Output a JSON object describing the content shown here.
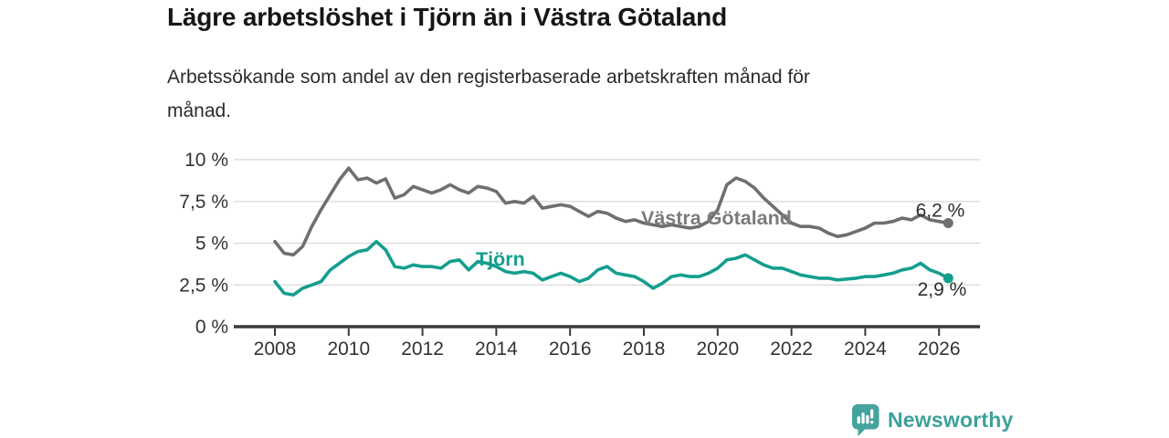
{
  "header": {
    "title": "Lägre arbetslöshet i Tjörn än i Västra Götaland",
    "subtitle_lines": [
      "Arbetssökande som andel av den registerbaserade arbetskraften månad för",
      "månad."
    ]
  },
  "chart_data": {
    "type": "line",
    "title": "Lägre arbetslöshet i Tjörn än i Västra Götaland",
    "unit": "% av registerbaserad arbetskraft",
    "grid": true,
    "legend_position": "inline-labels",
    "x_start_year": 2008,
    "x_step_years": 0.25,
    "xlim": [
      2006.9,
      2027.2
    ],
    "ylim": [
      0,
      10.5
    ],
    "x_tick_labels": [
      "2008",
      "2010",
      "2012",
      "2014",
      "2016",
      "2018",
      "2020",
      "2022",
      "2024",
      "2026"
    ],
    "x_tick_years": [
      2008,
      2010,
      2012,
      2014,
      2016,
      2018,
      2020,
      2022,
      2024,
      2026
    ],
    "y_tick_labels": [
      "0 %",
      "2,5 %",
      "5 %",
      "7,5 %",
      "10 %"
    ],
    "y_tick_values": [
      0,
      2.5,
      5,
      7.5,
      10
    ],
    "series": [
      {
        "name": "Västra Götaland",
        "slug": "vastra-gotaland",
        "color": "#6f6f72",
        "label_color": "#7b7b7b",
        "end_label": "6,2 %",
        "end_value": 6.2,
        "values": [
          5.1,
          4.4,
          4.3,
          4.8,
          6.0,
          7.0,
          7.9,
          8.8,
          9.5,
          8.8,
          8.9,
          8.6,
          8.85,
          7.7,
          7.9,
          8.4,
          8.2,
          8.0,
          8.2,
          8.5,
          8.2,
          8.0,
          8.4,
          8.3,
          8.1,
          7.4,
          7.5,
          7.4,
          7.8,
          7.1,
          7.2,
          7.3,
          7.2,
          6.9,
          6.6,
          6.9,
          6.8,
          6.5,
          6.3,
          6.4,
          6.2,
          6.1,
          6.0,
          6.1,
          6.0,
          5.9,
          6.0,
          6.3,
          7.0,
          8.5,
          8.9,
          8.7,
          8.3,
          7.7,
          7.2,
          6.7,
          6.2,
          6.0,
          6.0,
          5.9,
          5.6,
          5.4,
          5.5,
          5.7,
          5.9,
          6.2,
          6.2,
          6.3,
          6.5,
          6.4,
          6.7,
          6.4,
          6.3,
          6.2
        ]
      },
      {
        "name": "Tjörn",
        "slug": "tjorn",
        "color": "#149e8f",
        "label_color": "#149e8f",
        "end_label": "2,9 %",
        "end_value": 2.9,
        "values": [
          2.7,
          2.0,
          1.9,
          2.3,
          2.5,
          2.7,
          3.4,
          3.8,
          4.2,
          4.5,
          4.6,
          5.1,
          4.6,
          3.6,
          3.5,
          3.7,
          3.6,
          3.6,
          3.5,
          3.9,
          4.0,
          3.4,
          3.9,
          3.8,
          3.6,
          3.3,
          3.2,
          3.3,
          3.2,
          2.8,
          3.0,
          3.2,
          3.0,
          2.7,
          2.9,
          3.4,
          3.6,
          3.2,
          3.1,
          3.0,
          2.7,
          2.3,
          2.6,
          3.0,
          3.1,
          3.0,
          3.0,
          3.2,
          3.5,
          4.0,
          4.1,
          4.3,
          4.0,
          3.7,
          3.5,
          3.5,
          3.3,
          3.1,
          3.0,
          2.9,
          2.9,
          2.8,
          2.85,
          2.9,
          3.0,
          3.0,
          3.1,
          3.2,
          3.4,
          3.5,
          3.8,
          3.4,
          3.2,
          2.9
        ]
      }
    ],
    "colors": {
      "axis": "#38383a",
      "gridline": "#d8d8d8",
      "tick_label": "#333333",
      "end_label": "#2e2e2e"
    }
  },
  "footer": {
    "brand": "Newsworthy",
    "brand_color": "#3da19b",
    "logo_icon": "newsworthy-bar-chart-bubble"
  }
}
